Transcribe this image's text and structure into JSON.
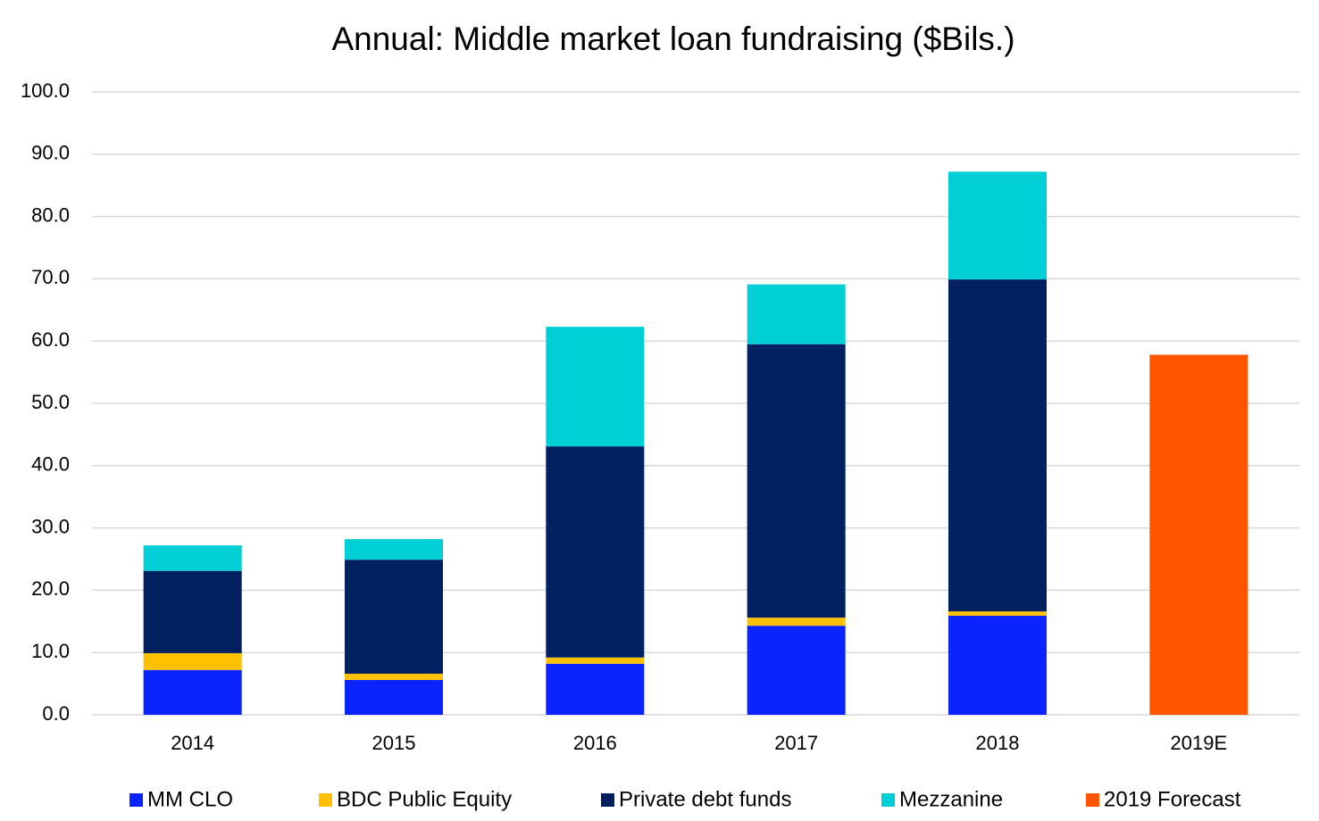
{
  "chart_data": {
    "type": "stacked_bar",
    "title": "Annual: Middle market loan fundraising ($Bils.)",
    "categories": [
      "2014",
      "2015",
      "2016",
      "2017",
      "2018",
      "2019E"
    ],
    "series": [
      {
        "name": "MM CLO",
        "color": "#0a24ff",
        "values": [
          7.2,
          5.6,
          8.2,
          14.3,
          15.9,
          null
        ]
      },
      {
        "name": "BDC Public Equity",
        "color": "#ffc000",
        "values": [
          2.7,
          1.0,
          1.0,
          1.3,
          0.7,
          null
        ]
      },
      {
        "name": "Private debt funds",
        "color": "#002060",
        "values": [
          13.2,
          18.3,
          33.9,
          43.9,
          53.3,
          null
        ]
      },
      {
        "name": "Mezzanine",
        "color": "#00cfd5",
        "values": [
          4.1,
          3.3,
          19.2,
          9.6,
          17.3,
          null
        ]
      },
      {
        "name": "2019 Forecast",
        "color": "#ff5500",
        "values": [
          null,
          null,
          null,
          null,
          null,
          57.8
        ]
      }
    ],
    "ylim": [
      0,
      100
    ],
    "yticks": [
      {
        "value": 0,
        "label": "0.0"
      },
      {
        "value": 10,
        "label": "10.0"
      },
      {
        "value": 20,
        "label": "20.0"
      },
      {
        "value": 30,
        "label": "30.0"
      },
      {
        "value": 40,
        "label": "40.0"
      },
      {
        "value": 50,
        "label": "50.0"
      },
      {
        "value": 60,
        "label": "60.0"
      },
      {
        "value": 70,
        "label": "70.0"
      },
      {
        "value": 80,
        "label": "80.0"
      },
      {
        "value": 90,
        "label": "90.0"
      },
      {
        "value": 100,
        "label": "100.0"
      }
    ],
    "grid": true,
    "legend": "bottom"
  }
}
